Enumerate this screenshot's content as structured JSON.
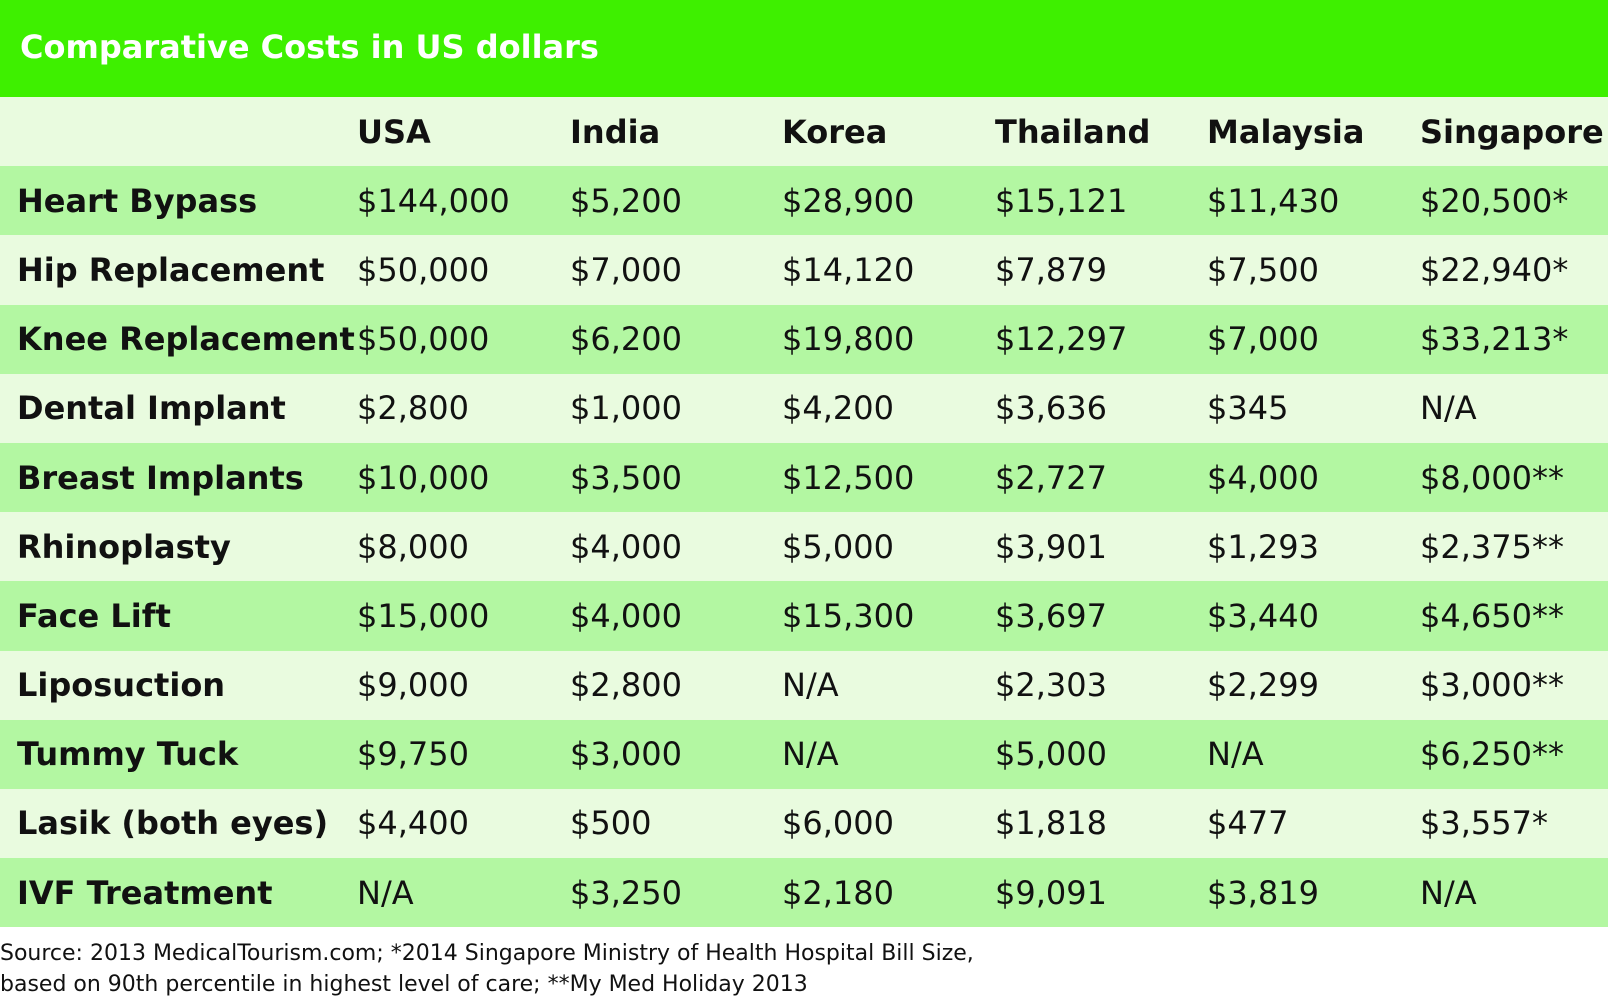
{
  "chart_data": {
    "type": "table",
    "title": "Comparative Costs in US dollars",
    "columns": [
      "USA",
      "India",
      "Korea",
      "Thailand",
      "Malaysia",
      "Singapore"
    ],
    "rows": [
      {
        "label": "Heart Bypass",
        "values": [
          "$144,000",
          "$5,200",
          "$28,900",
          "$15,121",
          "$11,430",
          "$20,500*"
        ]
      },
      {
        "label": "Hip Replacement",
        "values": [
          "$50,000",
          "$7,000",
          "$14,120",
          "$7,879",
          "$7,500",
          "$22,940*"
        ]
      },
      {
        "label": "Knee Replacement",
        "values": [
          "$50,000",
          "$6,200",
          "$19,800",
          "$12,297",
          "$7,000",
          "$33,213*"
        ]
      },
      {
        "label": "Dental Implant",
        "values": [
          "$2,800",
          "$1,000",
          "$4,200",
          "$3,636",
          "$345",
          "N/A"
        ]
      },
      {
        "label": "Breast Implants",
        "values": [
          "$10,000",
          "$3,500",
          "$12,500",
          "$2,727",
          "$4,000",
          "$8,000**"
        ]
      },
      {
        "label": "Rhinoplasty",
        "values": [
          "$8,000",
          "$4,000",
          "$5,000",
          "$3,901",
          "$1,293",
          "$2,375**"
        ]
      },
      {
        "label": "Face Lift",
        "values": [
          "$15,000",
          "$4,000",
          "$15,300",
          "$3,697",
          "$3,440",
          "$4,650**"
        ]
      },
      {
        "label": "Liposuction",
        "values": [
          "$9,000",
          "$2,800",
          "N/A",
          "$2,303",
          "$2,299",
          "$3,000**"
        ]
      },
      {
        "label": "Tummy Tuck",
        "values": [
          "$9,750",
          "$3,000",
          "N/A",
          "$5,000",
          "N/A",
          "$6,250**"
        ]
      },
      {
        "label": "Lasik (both eyes)",
        "values": [
          "$4,400",
          "$500",
          "$6,000",
          "$1,818",
          "$477",
          "$3,557*"
        ]
      },
      {
        "label": "IVF Treatment",
        "values": [
          "N/A",
          "$3,250",
          "$2,180",
          "$9,091",
          "$3,819",
          "N/A"
        ]
      }
    ],
    "source_lines": [
      "Source: 2013 MedicalTourism.com; *2014 Singapore Ministry of Health Hospital Bill Size,",
      "based on 90th percentile in highest level of care; **My Med Holiday 2013"
    ]
  },
  "colors": {
    "title_bar": "#3ef000",
    "row_light": "#e9fbdf",
    "row_dark": "#b3f7a2",
    "title_text": "#ffffff",
    "body_text": "#111111"
  }
}
